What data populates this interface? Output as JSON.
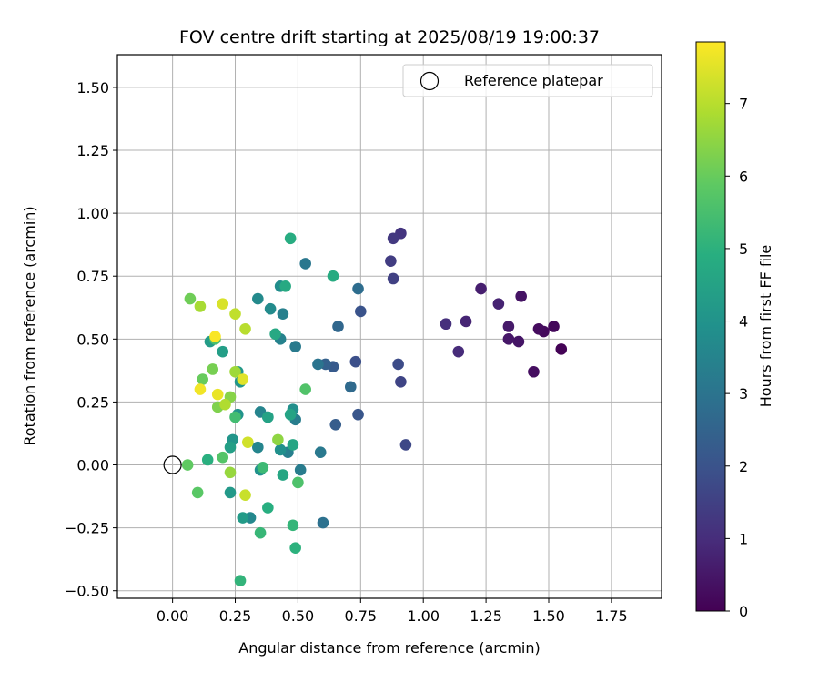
{
  "chart_data": {
    "type": "scatter",
    "title": "FOV centre drift starting at 2025/08/19 19:00:37",
    "xlabel": "Angular distance from reference (arcmin)",
    "ylabel": "Rotation from reference (arcmin)",
    "xlim": [
      -0.22,
      1.95
    ],
    "ylim": [
      -0.53,
      1.63
    ],
    "xticks": [
      0.0,
      0.25,
      0.5,
      0.75,
      1.0,
      1.25,
      1.5,
      1.75
    ],
    "xtick_labels": [
      "0.00",
      "0.25",
      "0.50",
      "0.75",
      "1.00",
      "1.25",
      "1.50",
      "1.75"
    ],
    "yticks": [
      -0.5,
      -0.25,
      0.0,
      0.25,
      0.5,
      0.75,
      1.0,
      1.25,
      1.5
    ],
    "ytick_labels": [
      "−0.50",
      "−0.25",
      "0.00",
      "0.25",
      "0.50",
      "0.75",
      "1.00",
      "1.25",
      "1.50"
    ],
    "grid": true,
    "legend": {
      "label": "Reference platepar",
      "placement": "upper right"
    },
    "reference_point": {
      "x": 0.0,
      "y": 0.0
    },
    "colorbar": {
      "label": "Hours from first FF file",
      "colormap": "viridis",
      "range": [
        0,
        7.85
      ],
      "ticks": [
        0,
        1,
        2,
        3,
        4,
        5,
        6,
        7
      ],
      "tick_labels": [
        "0",
        "1",
        "2",
        "3",
        "4",
        "5",
        "6",
        "7"
      ]
    },
    "points": [
      {
        "x": 1.55,
        "y": 0.46,
        "h": 0.05
      },
      {
        "x": 1.52,
        "y": 0.55,
        "h": 0.15
      },
      {
        "x": 1.48,
        "y": 0.53,
        "h": 0.2
      },
      {
        "x": 1.46,
        "y": 0.54,
        "h": 0.25
      },
      {
        "x": 1.44,
        "y": 0.37,
        "h": 0.3
      },
      {
        "x": 1.39,
        "y": 0.67,
        "h": 0.4
      },
      {
        "x": 1.38,
        "y": 0.49,
        "h": 0.45
      },
      {
        "x": 1.34,
        "y": 0.5,
        "h": 0.5
      },
      {
        "x": 1.34,
        "y": 0.55,
        "h": 0.55
      },
      {
        "x": 1.23,
        "y": 0.7,
        "h": 0.65
      },
      {
        "x": 1.3,
        "y": 0.64,
        "h": 0.75
      },
      {
        "x": 1.17,
        "y": 0.57,
        "h": 0.8
      },
      {
        "x": 1.14,
        "y": 0.45,
        "h": 0.95
      },
      {
        "x": 1.09,
        "y": 0.56,
        "h": 1.05
      },
      {
        "x": 0.91,
        "y": 0.92,
        "h": 1.2
      },
      {
        "x": 0.88,
        "y": 0.9,
        "h": 1.3
      },
      {
        "x": 0.87,
        "y": 0.81,
        "h": 1.4
      },
      {
        "x": 0.88,
        "y": 0.74,
        "h": 1.5
      },
      {
        "x": 0.91,
        "y": 0.33,
        "h": 1.6
      },
      {
        "x": 0.93,
        "y": 0.08,
        "h": 1.7
      },
      {
        "x": 0.9,
        "y": 0.4,
        "h": 1.8
      },
      {
        "x": 0.73,
        "y": 0.41,
        "h": 1.9
      },
      {
        "x": 0.75,
        "y": 0.61,
        "h": 2.0
      },
      {
        "x": 0.74,
        "y": 0.2,
        "h": 2.1
      },
      {
        "x": 0.64,
        "y": 0.39,
        "h": 2.2
      },
      {
        "x": 0.65,
        "y": 0.16,
        "h": 2.3
      },
      {
        "x": 0.61,
        "y": 0.4,
        "h": 2.4
      },
      {
        "x": 0.66,
        "y": 0.55,
        "h": 2.6
      },
      {
        "x": 0.71,
        "y": 0.31,
        "h": 2.7
      },
      {
        "x": 0.74,
        "y": 0.7,
        "h": 2.8
      },
      {
        "x": 0.6,
        "y": -0.23,
        "h": 2.9
      },
      {
        "x": 0.58,
        "y": 0.4,
        "h": 3.0
      },
      {
        "x": 0.53,
        "y": 0.8,
        "h": 3.1
      },
      {
        "x": 0.59,
        "y": 0.05,
        "h": 3.15
      },
      {
        "x": 0.49,
        "y": 0.47,
        "h": 3.2
      },
      {
        "x": 0.51,
        "y": -0.02,
        "h": 3.25
      },
      {
        "x": 0.49,
        "y": 0.18,
        "h": 3.3
      },
      {
        "x": 0.46,
        "y": 0.05,
        "h": 3.35
      },
      {
        "x": 0.44,
        "y": 0.6,
        "h": 3.4
      },
      {
        "x": 0.43,
        "y": 0.5,
        "h": 3.45
      },
      {
        "x": 0.35,
        "y": 0.21,
        "h": 3.5
      },
      {
        "x": 0.34,
        "y": 0.07,
        "h": 3.55
      },
      {
        "x": 0.38,
        "y": 0.19,
        "h": 3.6
      },
      {
        "x": 0.31,
        "y": -0.21,
        "h": 3.65
      },
      {
        "x": 0.34,
        "y": 0.66,
        "h": 3.7
      },
      {
        "x": 0.39,
        "y": 0.62,
        "h": 3.75
      },
      {
        "x": 0.43,
        "y": 0.71,
        "h": 3.8
      },
      {
        "x": 0.48,
        "y": 0.22,
        "h": 3.85
      },
      {
        "x": 0.43,
        "y": 0.06,
        "h": 3.9
      },
      {
        "x": 0.35,
        "y": -0.02,
        "h": 3.95
      },
      {
        "x": 0.26,
        "y": 0.2,
        "h": 4.0
      },
      {
        "x": 0.24,
        "y": 0.1,
        "h": 4.05
      },
      {
        "x": 0.27,
        "y": 0.33,
        "h": 4.1
      },
      {
        "x": 0.26,
        "y": 0.37,
        "h": 4.15
      },
      {
        "x": 0.23,
        "y": -0.11,
        "h": 4.2
      },
      {
        "x": 0.28,
        "y": -0.21,
        "h": 4.25
      },
      {
        "x": 0.15,
        "y": 0.49,
        "h": 4.3
      },
      {
        "x": 0.2,
        "y": 0.45,
        "h": 4.35
      },
      {
        "x": 0.23,
        "y": 0.07,
        "h": 4.4
      },
      {
        "x": 0.38,
        "y": 0.19,
        "h": 4.5
      },
      {
        "x": 0.47,
        "y": 0.2,
        "h": 4.55
      },
      {
        "x": 0.48,
        "y": 0.08,
        "h": 4.6
      },
      {
        "x": 0.44,
        "y": -0.04,
        "h": 4.65
      },
      {
        "x": 0.41,
        "y": 0.52,
        "h": 4.7
      },
      {
        "x": 0.45,
        "y": 0.71,
        "h": 4.75
      },
      {
        "x": 0.64,
        "y": 0.75,
        "h": 4.8
      },
      {
        "x": 0.47,
        "y": 0.9,
        "h": 4.85
      },
      {
        "x": 0.38,
        "y": -0.17,
        "h": 4.9
      },
      {
        "x": 0.14,
        "y": 0.02,
        "h": 4.95
      },
      {
        "x": 0.49,
        "y": -0.33,
        "h": 5.0
      },
      {
        "x": 0.27,
        "y": -0.46,
        "h": 5.1
      },
      {
        "x": 0.48,
        "y": -0.24,
        "h": 5.15
      },
      {
        "x": 0.35,
        "y": -0.27,
        "h": 5.2
      },
      {
        "x": 0.36,
        "y": -0.01,
        "h": 5.3
      },
      {
        "x": 0.25,
        "y": 0.19,
        "h": 5.4
      },
      {
        "x": 0.17,
        "y": 0.5,
        "h": 5.5
      },
      {
        "x": 0.5,
        "y": -0.07,
        "h": 5.6
      },
      {
        "x": 0.53,
        "y": 0.3,
        "h": 5.65
      },
      {
        "x": 0.2,
        "y": 0.03,
        "h": 5.7
      },
      {
        "x": 0.1,
        "y": -0.11,
        "h": 5.8
      },
      {
        "x": 0.06,
        "y": 0.0,
        "h": 5.9
      },
      {
        "x": 0.12,
        "y": 0.34,
        "h": 6.0
      },
      {
        "x": 0.07,
        "y": 0.66,
        "h": 6.1
      },
      {
        "x": 0.16,
        "y": 0.38,
        "h": 6.2
      },
      {
        "x": 0.18,
        "y": 0.23,
        "h": 6.3
      },
      {
        "x": 0.23,
        "y": 0.27,
        "h": 6.4
      },
      {
        "x": 0.42,
        "y": 0.1,
        "h": 6.5
      },
      {
        "x": 0.23,
        "y": -0.03,
        "h": 6.6
      },
      {
        "x": 0.25,
        "y": 0.37,
        "h": 6.7
      },
      {
        "x": 0.11,
        "y": 0.63,
        "h": 6.8
      },
      {
        "x": 0.21,
        "y": 0.24,
        "h": 6.9
      },
      {
        "x": 0.29,
        "y": 0.54,
        "h": 7.0
      },
      {
        "x": 0.25,
        "y": 0.6,
        "h": 7.1
      },
      {
        "x": 0.29,
        "y": -0.12,
        "h": 7.2
      },
      {
        "x": 0.3,
        "y": 0.09,
        "h": 7.3
      },
      {
        "x": 0.2,
        "y": 0.64,
        "h": 7.4
      },
      {
        "x": 0.28,
        "y": 0.34,
        "h": 7.5
      },
      {
        "x": 0.18,
        "y": 0.28,
        "h": 7.6
      },
      {
        "x": 0.11,
        "y": 0.3,
        "h": 7.7
      },
      {
        "x": 0.17,
        "y": 0.51,
        "h": 7.8
      }
    ]
  }
}
